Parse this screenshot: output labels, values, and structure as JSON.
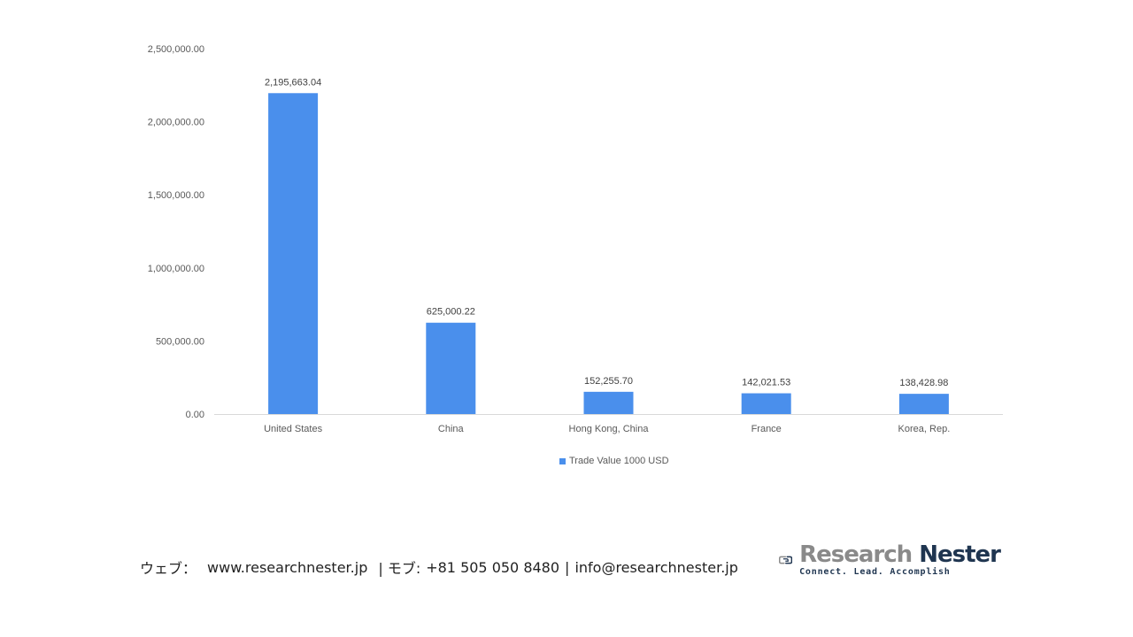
{
  "chart_data": {
    "type": "bar",
    "categories": [
      "United States",
      "China",
      "Hong Kong, China",
      "France",
      "Korea, Rep."
    ],
    "series": [
      {
        "name": "Trade Value 1000 USD",
        "values": [
          2195663.04,
          625000.22,
          152255.7,
          142021.53,
          138428.98
        ],
        "value_labels": [
          "2,195,663.04",
          "625,000.22",
          "152,255.70",
          "142,021.53",
          "138,428.98"
        ],
        "color": "#4a8fec"
      }
    ],
    "ylim": [
      0,
      2500000
    ],
    "yticks": [
      0,
      500000,
      1000000,
      1500000,
      2000000,
      2500000
    ],
    "ytick_labels": [
      "0.00",
      "500,000.00",
      "1,000,000.00",
      "1,500,000.00",
      "2,000,000.00",
      "2,500,000.00"
    ],
    "grid": false,
    "legend_position": "bottom"
  },
  "footer": {
    "web_label": "ウェブ：",
    "web_url": "www.researchnester.jp",
    "phone_label": "| モブ:",
    "phone": "+81 505 050 8480",
    "separator": "|",
    "email": "info@researchnester.jp"
  },
  "logo": {
    "name_part1": "Research",
    "name_part2": "Nester",
    "tagline": "Connect. Lead. Accomplish"
  },
  "colors": {
    "bar": "#4a8fec",
    "axis": "#d9d9d9",
    "logo_gray": "#8a8a8a",
    "logo_navy": "#1f3550"
  }
}
